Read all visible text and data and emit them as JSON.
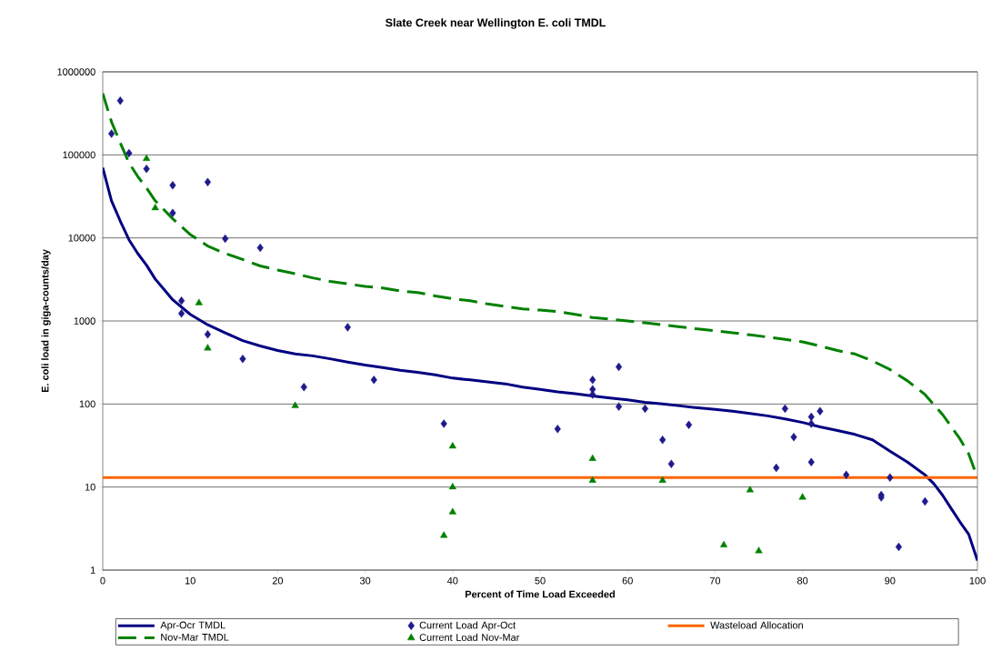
{
  "chart_data": {
    "type": "line",
    "title": "Slate Creek near Wellington E. coli TMDL",
    "xlabel": "Percent of Time Load Exceeded",
    "ylabel": "E. coli load in giga-counts/day",
    "xlim": [
      0,
      100
    ],
    "xticks": [
      0,
      10,
      20,
      30,
      40,
      50,
      60,
      70,
      80,
      90,
      100
    ],
    "ylim": [
      1,
      1000000
    ],
    "yticks": [
      1,
      10,
      100,
      1000,
      10000,
      100000,
      1000000
    ],
    "log": "y",
    "grid": "y",
    "legend": "bottom",
    "series": [
      {
        "name": "Apr-Ocr TMDL",
        "color": "#000080",
        "marker": "none",
        "line_style": "solid",
        "x": [
          0,
          1,
          2,
          3,
          4,
          5,
          6,
          7,
          8,
          10,
          12,
          14,
          16,
          18,
          20,
          22,
          24,
          26,
          28,
          30,
          32,
          34,
          36,
          38,
          40,
          42,
          44,
          46,
          48,
          50,
          52,
          54,
          56,
          58,
          60,
          62,
          64,
          66,
          68,
          70,
          72,
          74,
          76,
          78,
          80,
          82,
          84,
          86,
          88,
          90,
          92,
          94,
          95,
          96,
          97,
          98,
          99,
          100
        ],
        "values": [
          70000,
          28000,
          16000,
          9500,
          6500,
          4700,
          3200,
          2400,
          1800,
          1200,
          900,
          720,
          580,
          500,
          440,
          400,
          380,
          350,
          320,
          295,
          275,
          255,
          240,
          225,
          205,
          195,
          185,
          175,
          160,
          150,
          140,
          133,
          125,
          118,
          112,
          105,
          100,
          95,
          90,
          86,
          82,
          77,
          72,
          66,
          60,
          53,
          48,
          43,
          37,
          27,
          20,
          14,
          11,
          8,
          5.5,
          3.8,
          2.7,
          1.3
        ]
      },
      {
        "name": "Current Load Apr-Oct",
        "type": "scatter",
        "color": "#1f1a8c",
        "marker": "diamond",
        "x": [
          1,
          2,
          3,
          5,
          8,
          8,
          12,
          14,
          18,
          9,
          9,
          12,
          16,
          23,
          28,
          31,
          39,
          52,
          56,
          56,
          56,
          59,
          59,
          62,
          64,
          65,
          67,
          77,
          78,
          79,
          81,
          81,
          81,
          82,
          85,
          89,
          89,
          90,
          91,
          94
        ],
        "values": [
          180000,
          450000,
          105000,
          68000,
          43000,
          20000,
          47000,
          9800,
          7600,
          1750,
          1230,
          690,
          350,
          160,
          840,
          195,
          58,
          50,
          195,
          150,
          130,
          280,
          93,
          88,
          37,
          19,
          56,
          17,
          88,
          40,
          70,
          58,
          20,
          82,
          14,
          8,
          7.5,
          13,
          1.9,
          6.7
        ]
      },
      {
        "name": "Wasteload Allocation",
        "color": "#ff6600",
        "marker": "none",
        "line_style": "solid",
        "x": [
          0,
          100
        ],
        "values": [
          13,
          13
        ]
      },
      {
        "name": "Nov-Mar TMDL",
        "color": "#008000",
        "marker": "none",
        "line_style": "dashed",
        "x": [
          0,
          1,
          2,
          3,
          4,
          5,
          6,
          8,
          10,
          12,
          14,
          16,
          18,
          20,
          22,
          24,
          26,
          28,
          30,
          32,
          34,
          36,
          38,
          40,
          42,
          44,
          46,
          48,
          50,
          52,
          54,
          56,
          58,
          60,
          62,
          64,
          66,
          68,
          70,
          72,
          74,
          76,
          78,
          80,
          82,
          84,
          86,
          88,
          90,
          92,
          94,
          96,
          98,
          99,
          100
        ],
        "values": [
          550000,
          250000,
          140000,
          80000,
          55000,
          40000,
          28000,
          17000,
          11000,
          8000,
          6500,
          5500,
          4600,
          4100,
          3700,
          3300,
          3000,
          2800,
          2600,
          2500,
          2300,
          2200,
          2000,
          1850,
          1750,
          1600,
          1500,
          1400,
          1350,
          1300,
          1200,
          1100,
          1050,
          1000,
          950,
          900,
          850,
          800,
          760,
          720,
          680,
          640,
          600,
          560,
          500,
          440,
          400,
          330,
          260,
          190,
          130,
          75,
          38,
          25,
          13
        ]
      },
      {
        "name": "Current Load Nov-Mar",
        "type": "scatter",
        "color": "#008000",
        "marker": "triangle",
        "x": [
          5,
          6,
          11,
          12,
          22,
          39,
          40,
          40,
          40,
          56,
          56,
          64,
          71,
          74,
          75,
          80
        ],
        "values": [
          90000,
          23000,
          1650,
          470,
          95,
          2.6,
          31,
          10,
          5,
          22,
          12,
          12,
          2,
          9.2,
          1.7,
          7.5
        ]
      }
    ]
  }
}
